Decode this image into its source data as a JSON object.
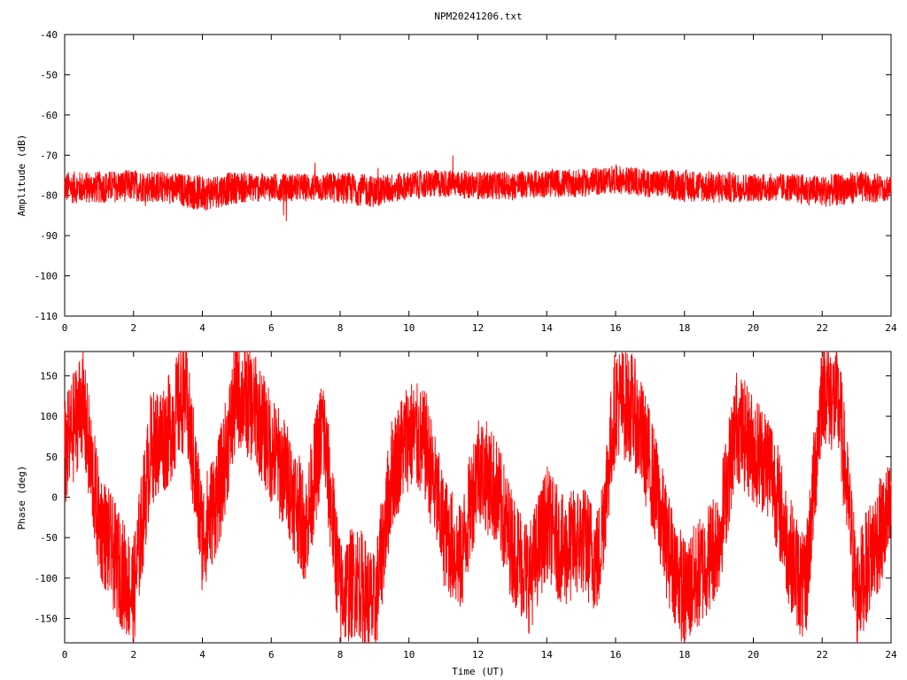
{
  "chart_data": [
    {
      "type": "line",
      "title": "NPM20241206.txt",
      "xlabel": "",
      "ylabel": "Amplitude (dB)",
      "xlim": [
        0,
        24
      ],
      "ylim": [
        -110,
        -40
      ],
      "x_ticks": [
        0,
        2,
        4,
        6,
        8,
        10,
        12,
        14,
        16,
        18,
        20,
        22,
        24
      ],
      "y_ticks": [
        -40,
        -50,
        -60,
        -70,
        -80,
        -90,
        -100,
        -110
      ],
      "grid": false,
      "color": "#ff0000",
      "series": [
        {
          "x": [
            0,
            1,
            2,
            3,
            4,
            5,
            6,
            7,
            8,
            9,
            10,
            11,
            12,
            13,
            14,
            15,
            16,
            17,
            18,
            19,
            20,
            21,
            22,
            23,
            24
          ],
          "values": [
            -78,
            -78,
            -77.5,
            -78,
            -79.5,
            -78,
            -78,
            -78,
            -78,
            -79,
            -77.5,
            -77,
            -77.5,
            -77.5,
            -77,
            -77,
            -76,
            -77,
            -77.5,
            -78,
            -78,
            -78,
            -79,
            -78,
            -78
          ],
          "spread": [
            8,
            8,
            8,
            8,
            9,
            8,
            7,
            7,
            8,
            8,
            7,
            7,
            7,
            7,
            7,
            7,
            7,
            7,
            8,
            8,
            7,
            7,
            8,
            8,
            7
          ]
        }
      ]
    },
    {
      "type": "line",
      "title": "",
      "xlabel": "Time (UT)",
      "ylabel": "Phase (deg)",
      "xlim": [
        0,
        24
      ],
      "ylim": [
        -180,
        180
      ],
      "x_ticks": [
        0,
        2,
        4,
        6,
        8,
        10,
        12,
        14,
        16,
        18,
        20,
        22,
        24
      ],
      "y_ticks": [
        150,
        100,
        50,
        0,
        -50,
        -100,
        -150
      ],
      "grid": false,
      "color": "#ff0000",
      "series": [
        {
          "x": [
            0,
            0.5,
            1,
            1.5,
            2,
            2.5,
            3,
            3.5,
            4,
            4.5,
            5,
            5.5,
            6,
            6.5,
            7,
            7.5,
            8,
            8.5,
            9,
            9.5,
            10,
            10.5,
            11,
            11.5,
            12,
            12.5,
            13,
            13.5,
            14,
            14.5,
            15,
            15.5,
            16,
            16.5,
            17,
            17.5,
            18,
            18.5,
            19,
            19.5,
            20,
            20.5,
            21,
            21.5,
            22,
            22.5,
            23,
            23.5,
            24
          ],
          "values": [
            50,
            120,
            -30,
            -80,
            -120,
            60,
            80,
            130,
            -50,
            10,
            130,
            110,
            60,
            20,
            -40,
            90,
            -120,
            -100,
            -140,
            30,
            80,
            60,
            -40,
            -80,
            40,
            10,
            -60,
            -100,
            -30,
            -70,
            -50,
            -80,
            120,
            110,
            40,
            -60,
            -120,
            -90,
            -50,
            90,
            60,
            40,
            -60,
            -120,
            140,
            110,
            -120,
            -60,
            -20
          ]
        }
      ]
    }
  ]
}
